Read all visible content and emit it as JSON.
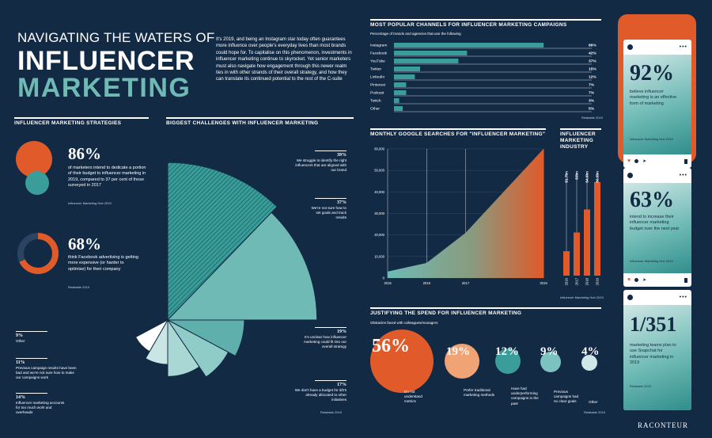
{
  "title": {
    "line1": "NAVIGATING THE WATERS OF",
    "line2": "INFLUENCER",
    "line3": "MARKETING"
  },
  "intro": "It's 2019, and being an Instagram star today often guarantees more influence over people's everyday lives than most brands could hope for. To capitalise on this phenomenon, investments in influencer marketing continue to skyrocket. Yet senior marketers must also navigate how engagement through this newer realm ties in with other strands of their overall strategy, and how they can translate its continued potential to the rest of the C-suite",
  "strategies": {
    "header": "INFLUENCER MARKETING STRATEGIES",
    "stat1": {
      "value": "86%",
      "text": "of marketers intend to dedicate a portion of their budget to influencer marketing in 2019, compared to 37 per cent of those surveyed in 2017",
      "source": "Influencer Marketing Hub 2019"
    },
    "stat2": {
      "value": "68%",
      "text": "think Facebook advertising is getting more expensive (or harder to optimise) for their company",
      "source": "Relatable 2019",
      "fraction": 0.68
    }
  },
  "challenges": {
    "header": "BIGGEST CHALLENGES WITH INFLUENCER MARKETING",
    "source": "Relatable 2019",
    "items": [
      {
        "pct": "39%",
        "label": "We struggle to identify the right influencers that are aligned with our brand",
        "value": 39
      },
      {
        "pct": "37%",
        "label": "We're not sure how to set goals and track results",
        "value": 37
      },
      {
        "pct": "19%",
        "label": "It's unclear how influencer marketing could fit into our overall strategy",
        "value": 19
      },
      {
        "pct": "17%",
        "label": "We don't have a budget for it/it's already allocated to other initiatives",
        "value": 17
      },
      {
        "pct": "14%",
        "label": "Influencer marketing accounts for too much work and overheads",
        "value": 14
      },
      {
        "pct": "11%",
        "label": "Previous campaign results have been bad and we're not sure how to make our campaigns work",
        "value": 11
      },
      {
        "pct": "9%",
        "label": "Other",
        "value": 9
      }
    ]
  },
  "channels": {
    "header": "MOST POPULAR CHANNELS FOR INFLUENCER MARKETING CAMPAIGNS",
    "sub": "Percentage of brands and agencies that use the following",
    "source": "Relatable 2019"
  },
  "searches": {
    "header": "MONTHLY GOOGLE SEARCHES FOR \"INFLUENCER MARKETING\""
  },
  "industry": {
    "header": "INFLUENCER MARKETING INDUSTRY",
    "source": "Influencer Marketing Hub 2019"
  },
  "justify": {
    "header": "JUSTIFYING THE SPEND FOR INFLUENCER MARKETING",
    "sub": "Obstacles faced with colleagues/managers",
    "source": "Relatable 2019",
    "items": [
      {
        "value": "56%",
        "label": "Do not understand metrics",
        "fraction": 0.56
      },
      {
        "value": "19%",
        "label": "Prefer traditional marketing methods",
        "fraction": 0.19
      },
      {
        "value": "12%",
        "label": "Have had underperforming campaigns in the past",
        "fraction": 0.12
      },
      {
        "value": "9%",
        "label": "Previous campaigns had no clear goals",
        "fraction": 0.09
      },
      {
        "value": "4%",
        "label": "Other",
        "fraction": 0.04
      }
    ]
  },
  "phones": [
    {
      "value": "92%",
      "text": "believe influencer marketing is an effective form of marketing",
      "source": "Influencer Marketing Hub 2019"
    },
    {
      "value": "63%",
      "text": "intend to increase their influencer marketing budget over the next year",
      "source": "Influencer Marketing Hub 2019"
    },
    {
      "value": "1/351",
      "text": "marketing teams plan to use Snapchat for influencer marketing in 2019",
      "source": "Relatable 2019"
    }
  ],
  "brand": "RACONTEUR",
  "colors": {
    "navy": "#132a45",
    "orange": "#e05a2a",
    "teal": "#3a9d99",
    "light_teal": "#7cc3bf",
    "white": "#ffffff"
  },
  "chart_data": [
    {
      "type": "bar",
      "title": "Most popular channels for influencer marketing campaigns",
      "categories": [
        "Instagram",
        "Facebook",
        "YouTube",
        "Twitter",
        "LinkedIn",
        "Pinterest",
        "Podcast",
        "Twitch",
        "Other"
      ],
      "values": [
        86,
        42,
        37,
        15,
        12,
        7,
        7,
        3,
        5
      ],
      "labels": [
        "86%",
        "42%",
        "37%",
        "15%",
        "12%",
        "7%",
        "7%",
        "3%",
        "5%"
      ],
      "xlim": [
        0,
        100
      ]
    },
    {
      "type": "area",
      "title": "Monthly Google searches for \"influencer marketing\"",
      "x": [
        2015,
        2016,
        2017,
        2019
      ],
      "x_labels": [
        "2015",
        "2016",
        "2017",
        "2019"
      ],
      "y": [
        3000,
        7000,
        21000,
        60000
      ],
      "ylim": [
        0,
        60000
      ],
      "yticks": [
        0,
        10000,
        20000,
        30000,
        40000,
        50000,
        60000
      ],
      "ytick_labels": [
        "0",
        "10,000",
        "20,000",
        "30,000",
        "40,000",
        "50,000",
        "60,000"
      ]
    },
    {
      "type": "bar",
      "title": "Influencer marketing industry",
      "categories": [
        "2016",
        "2017",
        "2018",
        "2019"
      ],
      "values": [
        1.7,
        3.0,
        4.6,
        6.5
      ],
      "labels": [
        "$1.7bn",
        "$3bn",
        "$4.6bn",
        "$6.5bn"
      ],
      "ylim": [
        0,
        6.5
      ]
    }
  ]
}
